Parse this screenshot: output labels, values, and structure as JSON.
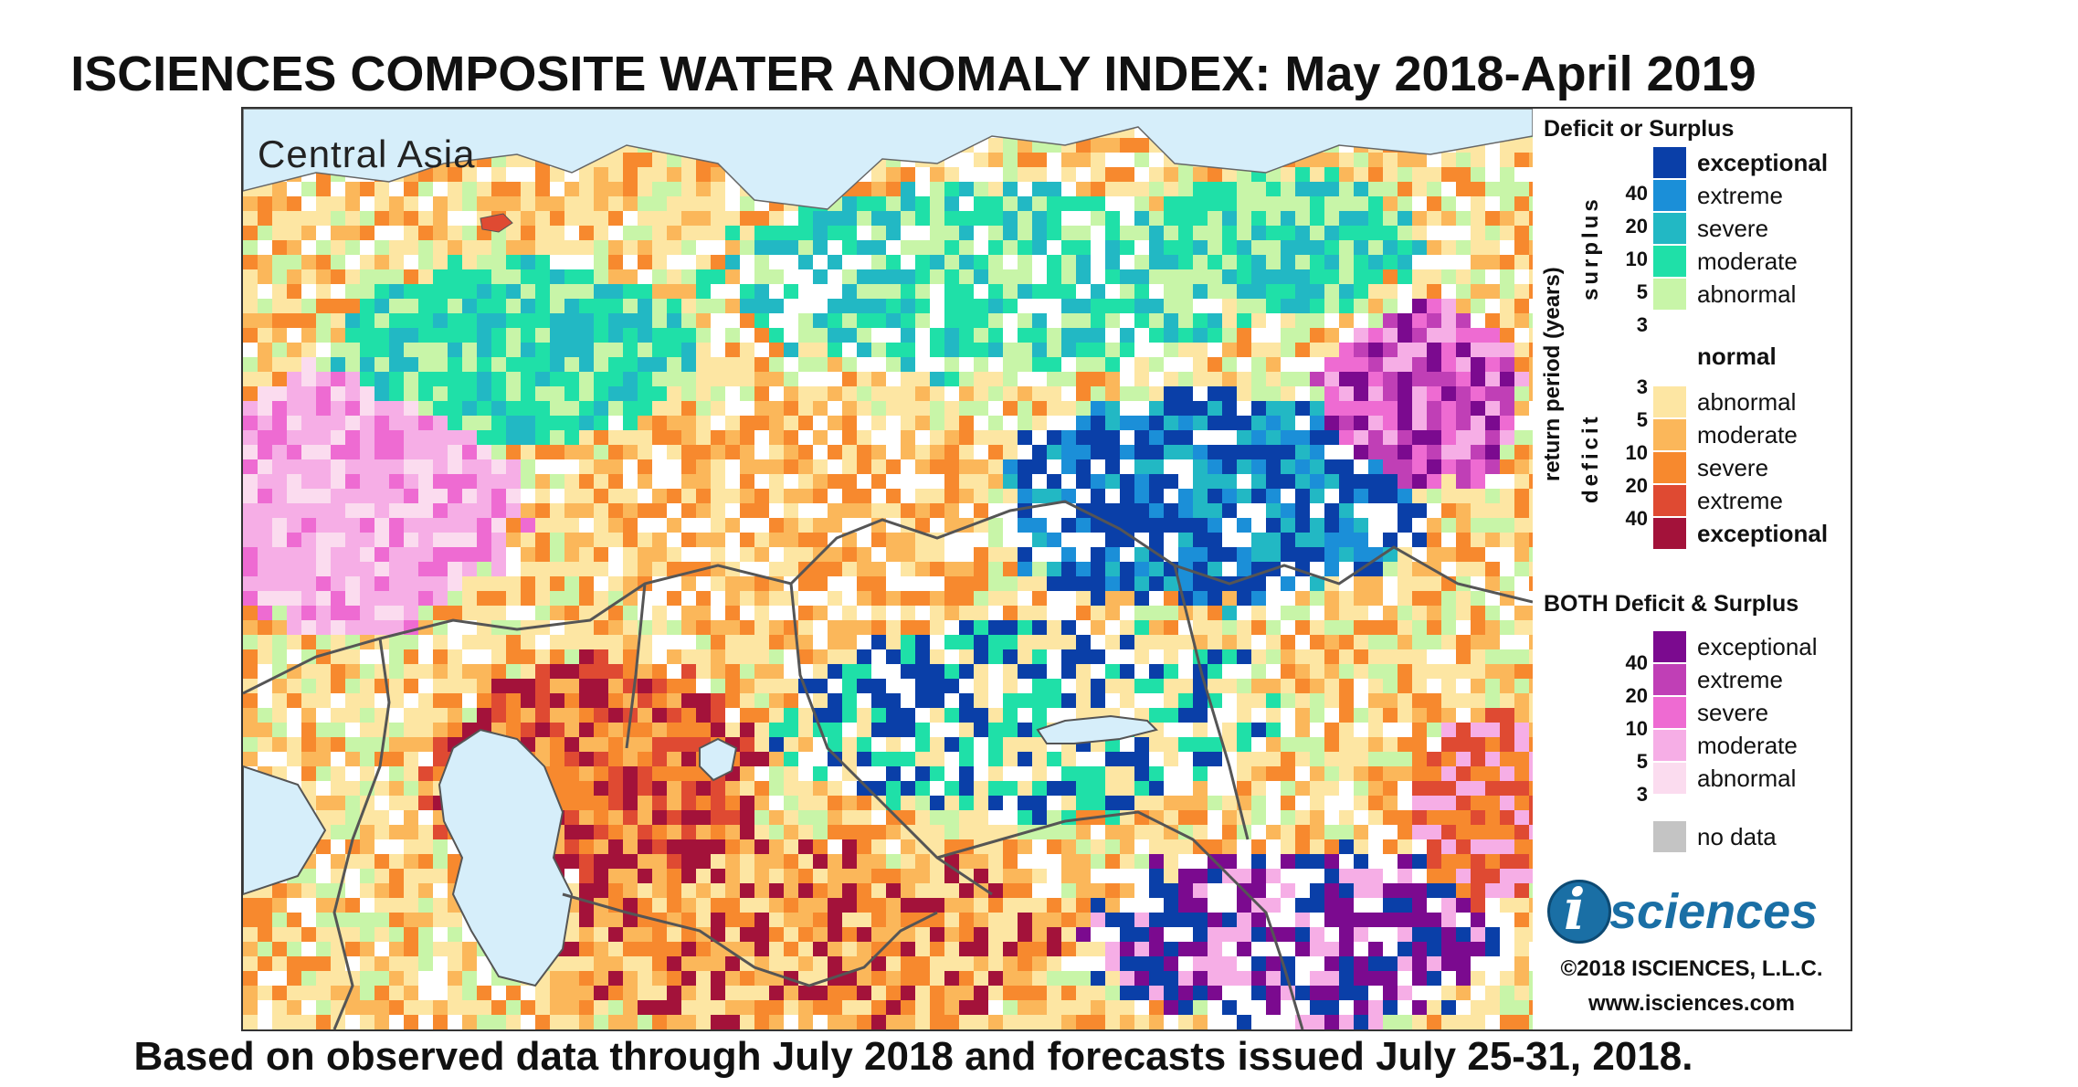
{
  "title": "ISCIENCES COMPOSITE WATER ANOMALY INDEX: May 2018-April 2019",
  "subtitle": "Based on observed data through July 2018 and forecasts issued July 25-31, 2018.",
  "region_label": "Central Asia",
  "legend": {
    "deficit_surplus_heading": "Deficit or Surplus",
    "axis_label": "return period (years)",
    "surplus_label": "surplus",
    "deficit_label": "deficit",
    "surplus_classes": [
      {
        "label": "exceptional",
        "color": "#0a3fa8",
        "bold": true
      },
      {
        "label": "extreme",
        "color": "#1b8fd8"
      },
      {
        "label": "severe",
        "color": "#22b8c4"
      },
      {
        "label": "moderate",
        "color": "#1fe0a8"
      },
      {
        "label": "abnormal",
        "color": "#c8f5a8"
      }
    ],
    "surplus_numbers": [
      "40",
      "20",
      "10",
      "5",
      "3"
    ],
    "normal_label": "normal",
    "deficit_classes": [
      {
        "label": "abnormal",
        "color": "#fde6a3"
      },
      {
        "label": "moderate",
        "color": "#fbb75a"
      },
      {
        "label": "severe",
        "color": "#f7892e"
      },
      {
        "label": "extreme",
        "color": "#df4a32"
      },
      {
        "label": "exceptional",
        "color": "#a3123a",
        "bold": true
      }
    ],
    "deficit_numbers": [
      "3",
      "5",
      "10",
      "20",
      "40"
    ],
    "both_heading": "BOTH Deficit & Surplus",
    "both_classes": [
      {
        "label": "exceptional",
        "color": "#7b0a8f"
      },
      {
        "label": "extreme",
        "color": "#c03fb6"
      },
      {
        "label": "severe",
        "color": "#ee6bd2"
      },
      {
        "label": "moderate",
        "color": "#f6aee6"
      },
      {
        "label": "abnormal",
        "color": "#fbdcef"
      }
    ],
    "both_numbers": [
      "40",
      "20",
      "10",
      "5",
      "3"
    ],
    "no_data_label": "no data",
    "no_data_color": "#c4c4c4"
  },
  "logo_text": "sciences",
  "logo_letter": "i",
  "copyright": "©2018 ISCIENCES, L.L.C.",
  "website": "www.isciences.com",
  "colors": {
    "water": "#d6eefa",
    "border_line": "#555555"
  }
}
